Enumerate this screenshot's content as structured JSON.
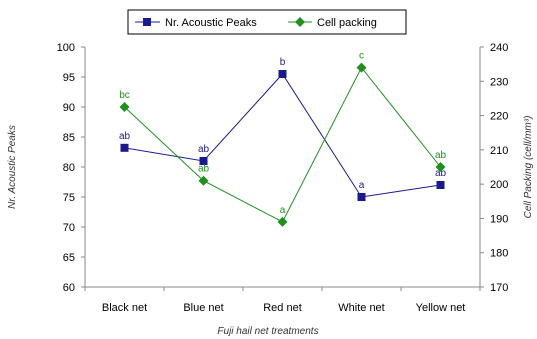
{
  "chart_data": {
    "type": "line",
    "categories": [
      "Black net",
      "Blue net",
      "Red net",
      "White net",
      "Yellow net"
    ],
    "xlabel": "Fuji hail net treatments",
    "ylabel": "Nr. Acoustic Peaks",
    "y2label": "Cell Packing (cell/mm³)",
    "ylim": [
      60,
      100
    ],
    "yticks": [
      60,
      65,
      70,
      75,
      80,
      85,
      90,
      95,
      100
    ],
    "y2lim": [
      170,
      240
    ],
    "y2ticks": [
      170,
      180,
      190,
      200,
      210,
      220,
      230,
      240
    ],
    "legend_position": "top",
    "grid": false,
    "series": [
      {
        "name": "Nr. Acoustic Peaks",
        "axis": "left",
        "color": "#1a1a8c",
        "marker": "square",
        "values": [
          83.2,
          81.0,
          95.5,
          75.0,
          77.0
        ],
        "labels": [
          "ab",
          "ab",
          "b",
          "a",
          "ab"
        ]
      },
      {
        "name": "Cell packing",
        "axis": "right",
        "color": "#1f8f1f",
        "marker": "diamond",
        "values": [
          222.5,
          201.0,
          189.0,
          234.0,
          205.0
        ],
        "labels": [
          "bc",
          "ab",
          "a",
          "c",
          "ab"
        ]
      }
    ]
  }
}
